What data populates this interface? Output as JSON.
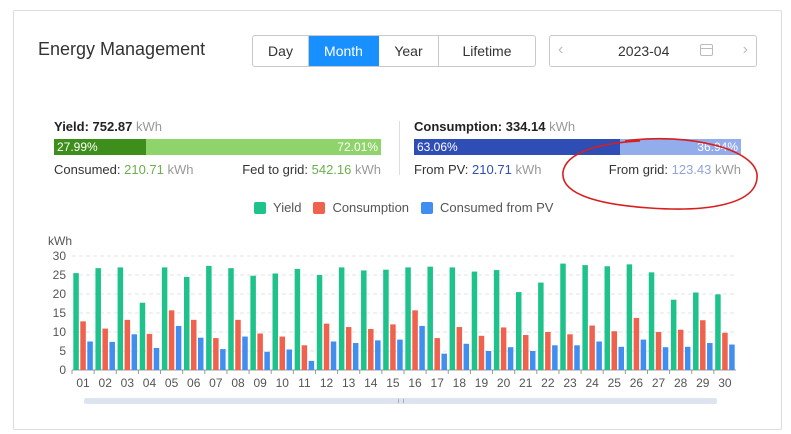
{
  "title": "Energy Management",
  "tabs": [
    {
      "label": "Day",
      "active": false
    },
    {
      "label": "Month",
      "active": true
    },
    {
      "label": "Year",
      "active": false
    },
    {
      "label": "Lifetime",
      "active": false
    }
  ],
  "date_picker": {
    "value": "2023-04",
    "prev": "‹",
    "next": "›"
  },
  "yield": {
    "label": "Yield:",
    "value": "752.87",
    "unit": "kWh",
    "consumed_pct": "27.99%",
    "fed_pct": "72.01%",
    "consumed_fraction": 0.2799,
    "consumed_label": "Consumed:",
    "consumed_value": "210.71",
    "fed_label": "Fed to grid:",
    "fed_value": "542.16",
    "colors": {
      "consumed": "#3e8e1b",
      "fed": "#8fd46a"
    }
  },
  "consumption": {
    "label": "Consumption:",
    "value": "334.14",
    "unit": "kWh",
    "pv_pct": "63.06%",
    "grid_pct": "36.94%",
    "pv_fraction": 0.6306,
    "pv_label": "From PV:",
    "pv_value": "210.71",
    "grid_label": "From grid:",
    "grid_value": "123.43",
    "colors": {
      "pv": "#2e4db5",
      "grid": "#93acec"
    }
  },
  "chart_data": {
    "type": "bar",
    "ylabel": "kWh",
    "ylim": [
      0,
      30
    ],
    "yticks": [
      0,
      5,
      10,
      15,
      20,
      25,
      30
    ],
    "grid": true,
    "legend_position": "top-center",
    "categories": [
      "01",
      "02",
      "03",
      "04",
      "05",
      "06",
      "07",
      "08",
      "09",
      "10",
      "11",
      "12",
      "13",
      "14",
      "15",
      "16",
      "17",
      "18",
      "19",
      "20",
      "21",
      "22",
      "23",
      "24",
      "25",
      "26",
      "27",
      "28",
      "29",
      "30"
    ],
    "series": [
      {
        "name": "Yield",
        "color": "#1ec28b",
        "values": [
          25.5,
          26.8,
          27.0,
          17.7,
          27.0,
          24.5,
          27.4,
          26.8,
          24.8,
          25.4,
          26.6,
          25.0,
          27.0,
          26.2,
          26.4,
          27.0,
          27.2,
          27.0,
          25.9,
          26.3,
          20.5,
          23.0,
          28.0,
          27.6,
          27.3,
          27.8,
          25.7,
          18.5,
          20.4,
          19.9
        ]
      },
      {
        "name": "Consumption",
        "color": "#f0624d",
        "values": [
          12.8,
          10.9,
          13.2,
          9.5,
          15.7,
          13.2,
          8.4,
          13.2,
          9.6,
          8.8,
          6.5,
          12.2,
          11.3,
          10.8,
          12.0,
          15.7,
          8.4,
          11.3,
          9.0,
          11.2,
          9.2,
          10.0,
          9.4,
          11.7,
          10.2,
          13.7,
          10.0,
          10.6,
          13.1,
          9.8
        ]
      },
      {
        "name": "Consumed from PV",
        "color": "#3f8ef0",
        "values": [
          7.5,
          7.4,
          9.4,
          5.8,
          11.6,
          8.5,
          5.5,
          8.8,
          4.8,
          5.4,
          2.4,
          7.5,
          7.1,
          7.8,
          8.0,
          11.6,
          4.3,
          6.9,
          5.0,
          6.0,
          5.0,
          6.5,
          6.5,
          7.5,
          6.1,
          8.0,
          6.0,
          6.1,
          7.1,
          6.7
        ]
      }
    ]
  }
}
